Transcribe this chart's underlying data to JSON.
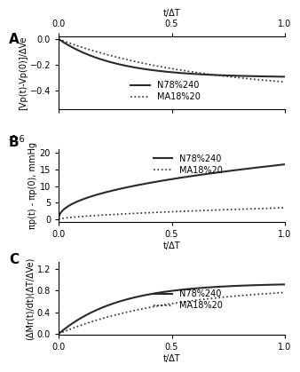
{
  "panel_A": {
    "label": "A",
    "ylabel": "[Vp(t)-Vp(0)]/ΔVe",
    "ylim": [
      -0.55,
      0.02
    ],
    "yticks": [
      0.0,
      -0.2,
      -0.4
    ],
    "N78_a": -0.3,
    "N78_b": 4.0,
    "MA18_a": -0.42,
    "MA18_b": 1.6
  },
  "panel_B": {
    "label": "B",
    "ylabel": "πp(t) - πp(0), mmHg",
    "ylim": [
      -0.8,
      21
    ],
    "yticks": [
      0,
      5,
      10,
      15,
      20
    ],
    "bottom_label": "-0.6",
    "N78_scale": 16.5,
    "N78_exp": 0.45,
    "MA18_scale": 3.5,
    "MA18_exp": 0.6
  },
  "panel_C": {
    "label": "C",
    "ylabel": "(ΔMr(t)/dt)(ΔT/ΔVe)",
    "ylim": [
      -0.02,
      1.32
    ],
    "yticks": [
      0.0,
      0.4,
      0.8,
      1.2
    ],
    "N78_scale": 0.93,
    "N78_rate": 3.8,
    "MA18_scale": 0.88,
    "MA18_rate": 2.0
  },
  "legend_solid": "N78%240",
  "legend_dotted": "MA18%20",
  "xlabel": "t/ΔT",
  "line_color": "#2a2a2a",
  "bg_color": "#ffffff",
  "tick_fs": 7,
  "label_fs": 7,
  "panel_label_fs": 11
}
